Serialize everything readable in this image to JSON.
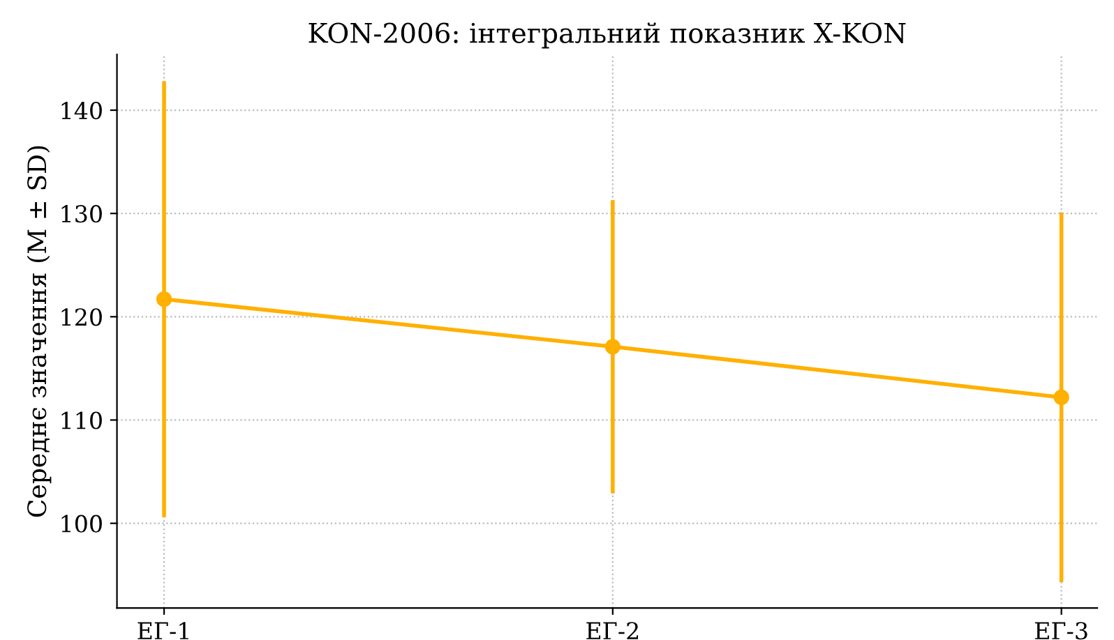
{
  "chart_data": {
    "type": "line",
    "title": "KON-2006: інтегральний показник X-KON",
    "ylabel": "Середнє значення (M ± SD)",
    "categories": [
      "ЕГ-1",
      "ЕГ-2",
      "ЕГ-3"
    ],
    "series": [
      {
        "color": "#ffb000",
        "values": [
          121.7,
          117.1,
          112.2
        ],
        "errors": [
          21.1,
          14.2,
          17.9
        ]
      }
    ],
    "ylim": [
      91.8,
      145.4
    ],
    "yticks": [
      100,
      110,
      120,
      130,
      140
    ],
    "grid": true,
    "marker": "circle",
    "line_style": "solid"
  }
}
